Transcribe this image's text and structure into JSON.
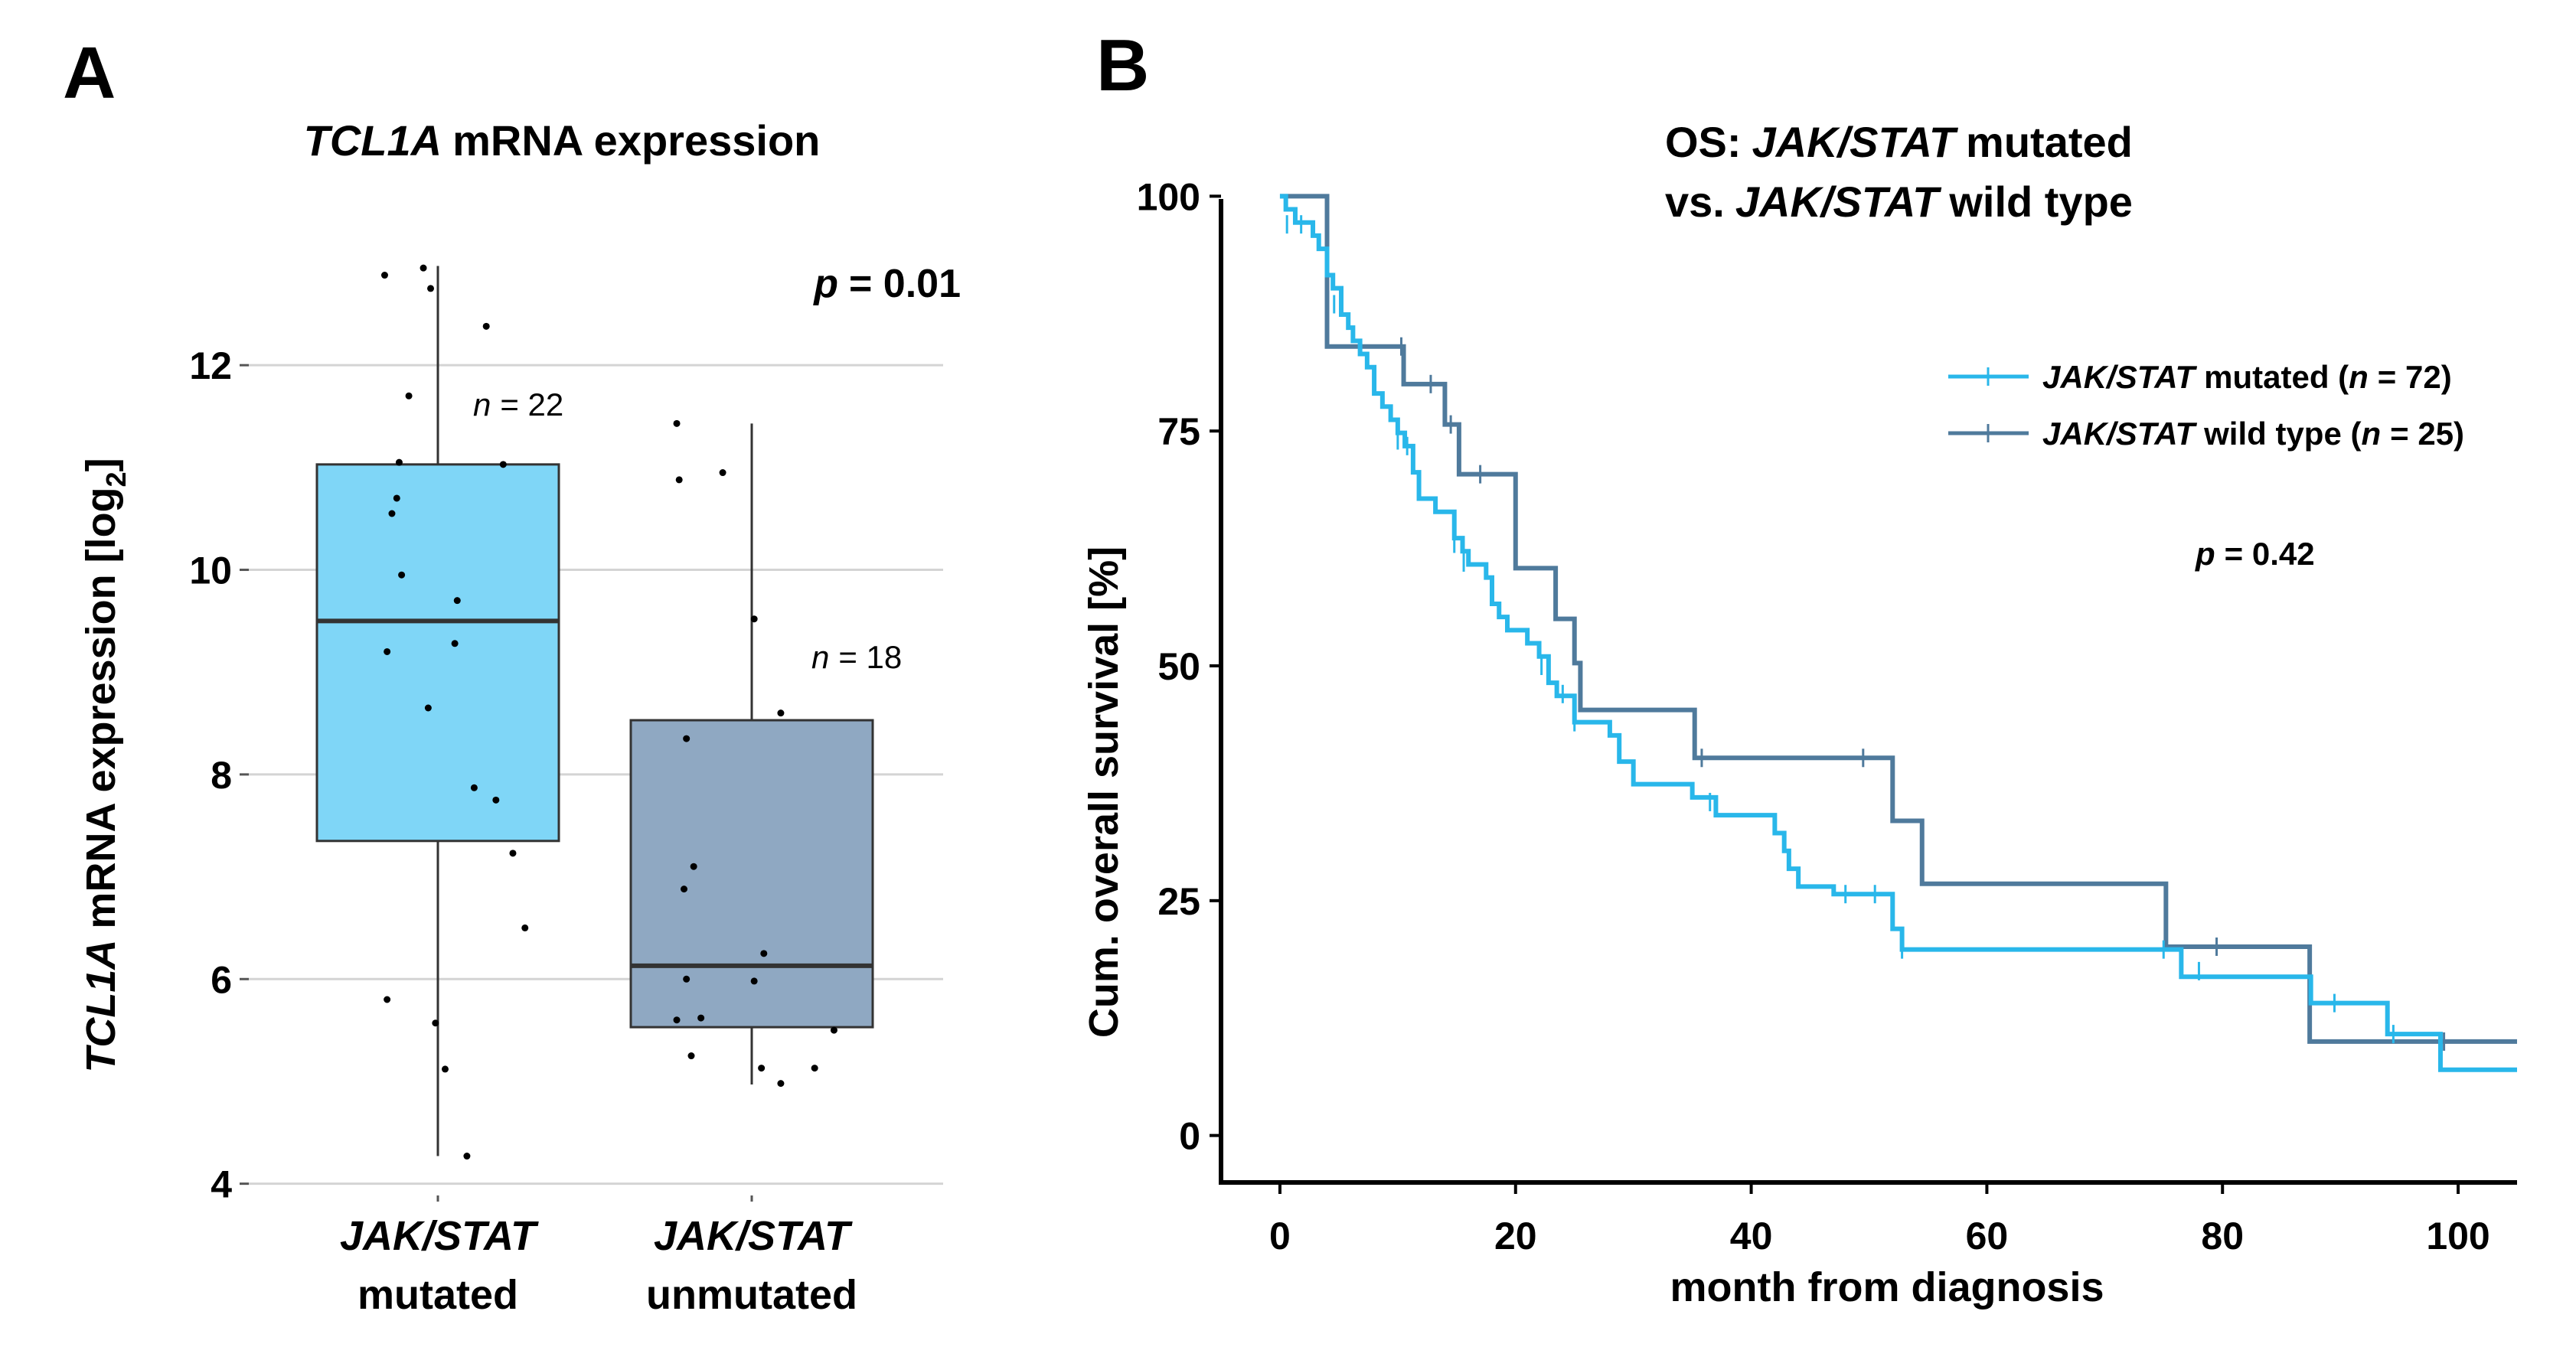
{
  "panels": {
    "a": {
      "letter": "A"
    },
    "b": {
      "letter": "B"
    }
  },
  "colors": {
    "mutated": "#7fd6f7",
    "unmutated": "#8fa8c2",
    "km_mutated": "#29b7ea",
    "km_wild": "#4f7a9c"
  },
  "chart_data": [
    {
      "type": "box",
      "title_gene": "TCL1A",
      "title_rest": "mRNA expression",
      "ylabel_gene": "TCL1A",
      "ylabel_rest": "mRNA expression [log",
      "ylabel_sub": "2",
      "ylabel_end": "]",
      "ylim": [
        3.9,
        13.4
      ],
      "yticks": [
        4,
        6,
        8,
        10,
        12
      ],
      "grid": true,
      "p_prefix": "p",
      "p_rest": "= 0.01",
      "groups": [
        {
          "name_line1": "JAK/STAT",
          "name_line2": "mutated",
          "n_prefix": "n",
          "n_rest": "= 22",
          "whisker_low": 4.27,
          "q1": 7.35,
          "median": 9.5,
          "q3": 11.03,
          "whisker_high": 12.97,
          "points": [
            {
              "x": -0.22,
              "y": 12.88
            },
            {
              "x": -0.06,
              "y": 12.95
            },
            {
              "x": -0.03,
              "y": 12.75
            },
            {
              "x": 0.2,
              "y": 12.38
            },
            {
              "x": -0.12,
              "y": 11.7
            },
            {
              "x": -0.16,
              "y": 11.05
            },
            {
              "x": 0.27,
              "y": 11.03
            },
            {
              "x": -0.17,
              "y": 10.7
            },
            {
              "x": -0.19,
              "y": 10.55
            },
            {
              "x": -0.15,
              "y": 9.95
            },
            {
              "x": 0.08,
              "y": 9.7
            },
            {
              "x": 0.07,
              "y": 9.28
            },
            {
              "x": -0.21,
              "y": 9.2
            },
            {
              "x": -0.04,
              "y": 8.65
            },
            {
              "x": 0.15,
              "y": 7.87
            },
            {
              "x": 0.24,
              "y": 7.75
            },
            {
              "x": 0.31,
              "y": 7.23
            },
            {
              "x": 0.36,
              "y": 6.5
            },
            {
              "x": -0.21,
              "y": 5.8
            },
            {
              "x": -0.01,
              "y": 5.57
            },
            {
              "x": 0.03,
              "y": 5.12
            },
            {
              "x": 0.12,
              "y": 4.27
            }
          ]
        },
        {
          "name_line1": "JAK/STAT",
          "name_line2": "unmutated",
          "n_prefix": "n",
          "n_rest": "= 18",
          "whisker_low": 4.97,
          "q1": 5.53,
          "median": 6.13,
          "q3": 8.53,
          "whisker_high": 11.43,
          "points": [
            {
              "x": -0.31,
              "y": 11.43
            },
            {
              "x": -0.12,
              "y": 10.95
            },
            {
              "x": -0.3,
              "y": 10.88
            },
            {
              "x": 0.01,
              "y": 9.52
            },
            {
              "x": 0.12,
              "y": 8.6
            },
            {
              "x": -0.27,
              "y": 8.35
            },
            {
              "x": -0.24,
              "y": 7.1
            },
            {
              "x": -0.28,
              "y": 6.88
            },
            {
              "x": 0.05,
              "y": 6.25
            },
            {
              "x": -0.27,
              "y": 6.0
            },
            {
              "x": 0.01,
              "y": 5.98
            },
            {
              "x": -0.21,
              "y": 5.62
            },
            {
              "x": -0.31,
              "y": 5.6
            },
            {
              "x": 0.34,
              "y": 5.5
            },
            {
              "x": -0.25,
              "y": 5.25
            },
            {
              "x": 0.04,
              "y": 5.13
            },
            {
              "x": 0.26,
              "y": 5.13
            },
            {
              "x": 0.12,
              "y": 4.98
            }
          ]
        }
      ]
    },
    {
      "type": "line",
      "subtype": "kaplan-meier",
      "title_line1_prefix": "OS:",
      "title_line1_gene": "JAK/STAT",
      "title_line1_rest": "mutated",
      "title_line2_prefix": "vs.",
      "title_line2_gene": "JAK/STAT",
      "title_line2_rest": "wild type",
      "xlabel": "month from diagnosis",
      "ylabel": "Cum. overall survival [%]",
      "xlim": [
        -5,
        105
      ],
      "ylim": [
        -5,
        105
      ],
      "xticks": [
        0,
        20,
        40,
        60,
        80,
        100
      ],
      "yticks": [
        0,
        25,
        50,
        75,
        100
      ],
      "grid": false,
      "legend_position": "top-right",
      "p_prefix": "p",
      "p_rest": "= 0.42",
      "series": [
        {
          "key": "mutated",
          "name_gene": "JAK/STAT",
          "name_rest": "mutated (",
          "n_prefix": "n",
          "n_rest": "= 72)",
          "steps": [
            [
              0,
              100
            ],
            [
              0.5,
              98.6
            ],
            [
              1.3,
              97.2
            ],
            [
              2.8,
              95.8
            ],
            [
              3.3,
              94.4
            ],
            [
              4.0,
              91.6
            ],
            [
              4.5,
              90.2
            ],
            [
              5.2,
              87.4
            ],
            [
              5.8,
              86.0
            ],
            [
              6.2,
              84.6
            ],
            [
              6.8,
              83.2
            ],
            [
              7.4,
              81.8
            ],
            [
              8.0,
              79.0
            ],
            [
              8.7,
              77.6
            ],
            [
              9.4,
              76.2
            ],
            [
              10.0,
              74.8
            ],
            [
              10.6,
              73.4
            ],
            [
              11.3,
              70.6
            ],
            [
              11.8,
              67.8
            ],
            [
              13.2,
              66.4
            ],
            [
              14.8,
              63.6
            ],
            [
              15.5,
              62.2
            ],
            [
              16.0,
              60.8
            ],
            [
              17.5,
              59.4
            ],
            [
              18.0,
              56.6
            ],
            [
              18.6,
              55.2
            ],
            [
              19.3,
              53.8
            ],
            [
              21.0,
              52.4
            ],
            [
              22.0,
              51.0
            ],
            [
              22.8,
              48.2
            ],
            [
              23.5,
              46.8
            ],
            [
              25.0,
              44.0
            ],
            [
              28.0,
              42.6
            ],
            [
              28.8,
              39.8
            ],
            [
              30.0,
              37.4
            ],
            [
              35.0,
              36.0
            ],
            [
              37.0,
              34.1
            ],
            [
              42.0,
              32.2
            ],
            [
              42.8,
              30.3
            ],
            [
              43.2,
              28.4
            ],
            [
              44.0,
              26.5
            ],
            [
              47.0,
              25.7
            ],
            [
              51.0,
              25.7
            ],
            [
              52.0,
              22.0
            ],
            [
              52.8,
              19.8
            ],
            [
              75.0,
              19.8
            ],
            [
              76.5,
              16.9
            ],
            [
              87.5,
              14.1
            ],
            [
              94.0,
              10.8
            ],
            [
              98.5,
              7.0
            ],
            [
              105,
              7.0
            ]
          ],
          "censors": [
            [
              0.6,
              97
            ],
            [
              1.8,
              97
            ],
            [
              4.6,
              88.5
            ],
            [
              10.0,
              74
            ],
            [
              10.8,
              73.4
            ],
            [
              14.8,
              63
            ],
            [
              15.6,
              61
            ],
            [
              22.2,
              50
            ],
            [
              24.0,
              47
            ],
            [
              25.0,
              44
            ],
            [
              36.5,
              35.5
            ],
            [
              48.0,
              25.7
            ],
            [
              50.5,
              25.7
            ],
            [
              52.8,
              19.8
            ],
            [
              75.0,
              19.8
            ],
            [
              78.0,
              17.5
            ],
            [
              89.5,
              14.1
            ],
            [
              94.5,
              10.8
            ]
          ]
        },
        {
          "key": "wild",
          "name_gene": "JAK/STAT",
          "name_rest": "wild type (",
          "n_prefix": "n",
          "n_rest": "= 25)",
          "steps": [
            [
              0,
              100
            ],
            [
              4.0,
              84.0
            ],
            [
              10.5,
              84.0
            ],
            [
              10.5,
              80.0
            ],
            [
              14.0,
              80.0
            ],
            [
              14.0,
              75.7
            ],
            [
              15.2,
              75.7
            ],
            [
              15.2,
              70.4
            ],
            [
              20.0,
              70.4
            ],
            [
              20.0,
              60.4
            ],
            [
              23.4,
              60.4
            ],
            [
              23.4,
              55.0
            ],
            [
              25.0,
              55.0
            ],
            [
              25.0,
              50.3
            ],
            [
              25.5,
              50.3
            ],
            [
              25.5,
              45.3
            ],
            [
              35.2,
              45.3
            ],
            [
              35.2,
              40.2
            ],
            [
              52.0,
              40.2
            ],
            [
              52.0,
              33.5
            ],
            [
              54.5,
              33.5
            ],
            [
              54.5,
              26.8
            ],
            [
              75.2,
              26.8
            ],
            [
              75.2,
              20.1
            ],
            [
              87.4,
              20.1
            ],
            [
              87.4,
              10.0
            ],
            [
              105,
              10.0
            ]
          ],
          "censors": [
            [
              10.3,
              84.0
            ],
            [
              12.8,
              80.0
            ],
            [
              14.5,
              75.7
            ],
            [
              17.0,
              70.4
            ],
            [
              35.8,
              40.2
            ],
            [
              49.5,
              40.2
            ],
            [
              79.5,
              20.1
            ],
            [
              98.8,
              10.0
            ]
          ]
        }
      ]
    }
  ]
}
